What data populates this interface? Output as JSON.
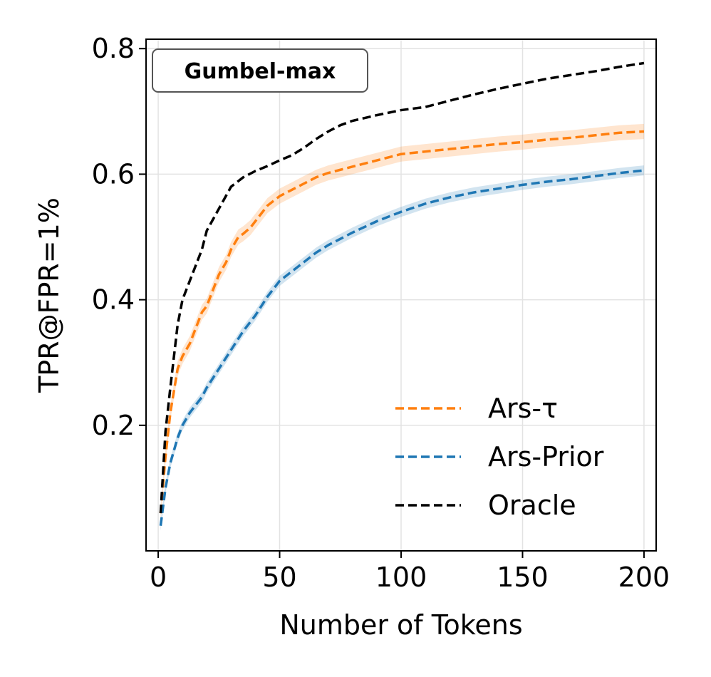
{
  "chart_data": {
    "type": "line",
    "title": "Gumbel-max",
    "xlabel": "Number of Tokens",
    "ylabel": "TPR@FPR=1%",
    "xlim": [
      -5,
      205
    ],
    "ylim": [
      0.0,
      0.815
    ],
    "xticks": [
      0,
      50,
      100,
      150,
      200
    ],
    "xtick_labels": [
      "0",
      "50",
      "100",
      "150",
      "200"
    ],
    "yticks": [
      0.2,
      0.4,
      0.6,
      0.8
    ],
    "ytick_labels": [
      "0.2",
      "0.4",
      "0.6",
      "0.8"
    ],
    "grid": true,
    "legend_position": "bottom-right",
    "series": [
      {
        "name": "Ars-τ",
        "color": "#ff7f0e",
        "band": 0.012,
        "x": [
          1,
          3,
          5,
          8,
          10,
          13,
          15,
          18,
          20,
          22,
          25,
          28,
          30,
          33,
          35,
          38,
          40,
          45,
          50,
          55,
          60,
          65,
          70,
          75,
          80,
          90,
          100,
          110,
          120,
          130,
          140,
          150,
          160,
          170,
          180,
          190,
          200
        ],
        "values": [
          0.06,
          0.15,
          0.22,
          0.29,
          0.31,
          0.33,
          0.35,
          0.38,
          0.39,
          0.41,
          0.44,
          0.46,
          0.48,
          0.5,
          0.505,
          0.515,
          0.525,
          0.55,
          0.565,
          0.575,
          0.585,
          0.595,
          0.602,
          0.607,
          0.612,
          0.622,
          0.632,
          0.636,
          0.64,
          0.644,
          0.648,
          0.651,
          0.655,
          0.658,
          0.662,
          0.666,
          0.668
        ]
      },
      {
        "name": "Ars-Prior",
        "color": "#1f77b4",
        "band": 0.008,
        "x": [
          1,
          3,
          5,
          8,
          10,
          13,
          15,
          18,
          20,
          25,
          30,
          35,
          40,
          45,
          50,
          55,
          60,
          65,
          70,
          75,
          80,
          90,
          100,
          110,
          120,
          130,
          140,
          150,
          160,
          170,
          180,
          190,
          200
        ],
        "values": [
          0.04,
          0.1,
          0.14,
          0.18,
          0.2,
          0.22,
          0.23,
          0.245,
          0.26,
          0.29,
          0.32,
          0.35,
          0.375,
          0.405,
          0.43,
          0.445,
          0.46,
          0.475,
          0.487,
          0.497,
          0.507,
          0.525,
          0.54,
          0.553,
          0.563,
          0.571,
          0.577,
          0.583,
          0.588,
          0.592,
          0.597,
          0.602,
          0.606
        ]
      },
      {
        "name": "Oracle",
        "color": "#000000",
        "band": 0,
        "x": [
          1,
          3,
          5,
          8,
          10,
          13,
          15,
          18,
          20,
          25,
          30,
          35,
          40,
          45,
          50,
          55,
          60,
          65,
          70,
          75,
          80,
          90,
          100,
          110,
          120,
          130,
          140,
          150,
          160,
          170,
          180,
          190,
          200
        ],
        "values": [
          0.06,
          0.19,
          0.26,
          0.36,
          0.4,
          0.43,
          0.45,
          0.48,
          0.51,
          0.545,
          0.58,
          0.595,
          0.605,
          0.613,
          0.622,
          0.63,
          0.642,
          0.656,
          0.668,
          0.678,
          0.685,
          0.694,
          0.702,
          0.707,
          0.717,
          0.727,
          0.736,
          0.744,
          0.752,
          0.758,
          0.764,
          0.771,
          0.777
        ]
      }
    ]
  }
}
